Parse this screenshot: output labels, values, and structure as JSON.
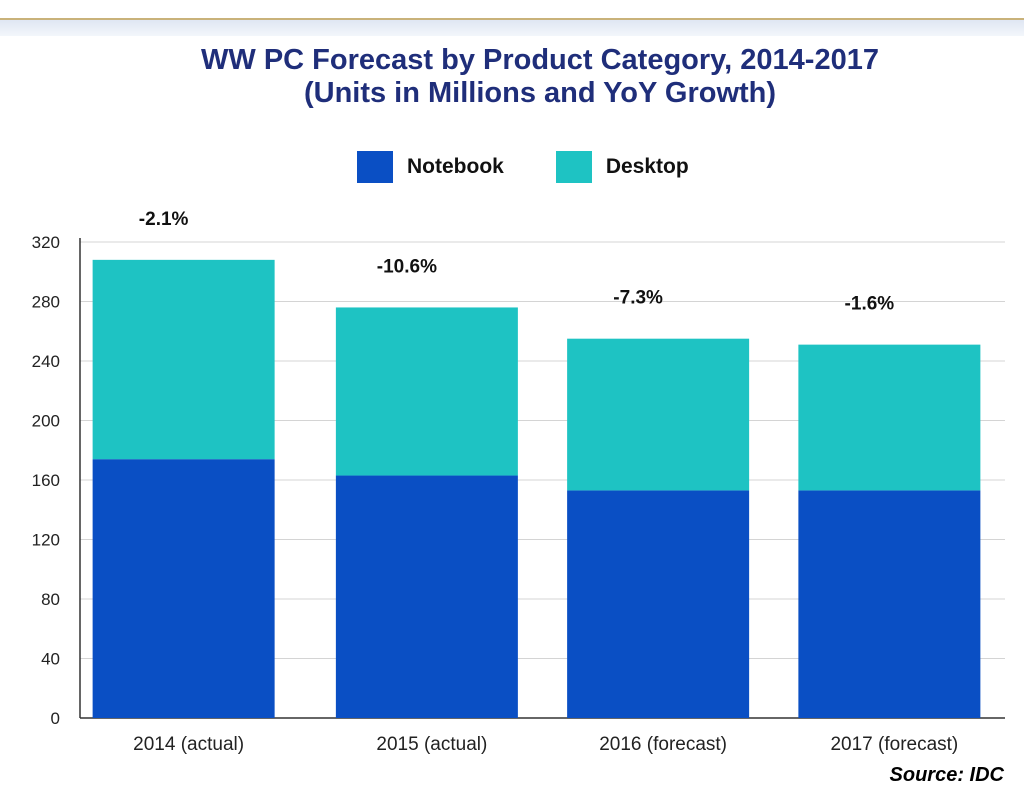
{
  "chart_data": {
    "type": "bar",
    "stacked": true,
    "title": "WW PC Forecast by Product Category, 2014-2017",
    "subtitle": "(Units in Millions and YoY Growth)",
    "categories": [
      "2014 (actual)",
      "2015 (actual)",
      "2016 (forecast)",
      "2017 (forecast)"
    ],
    "series": [
      {
        "name": "Notebook",
        "color": "#0a4fc4",
        "values": [
          174,
          163,
          153,
          153
        ]
      },
      {
        "name": "Desktop",
        "color": "#1ec3c3",
        "values": [
          134,
          113,
          102,
          98
        ]
      }
    ],
    "growth_labels": [
      "-2.1%",
      "-10.6%",
      "-7.3%",
      "-1.6%"
    ],
    "yticks": [
      0,
      40,
      80,
      120,
      160,
      200,
      240,
      280,
      320
    ],
    "ylim": [
      0,
      320
    ],
    "grid": true,
    "legend": "top-center",
    "source": "Source: IDC"
  }
}
